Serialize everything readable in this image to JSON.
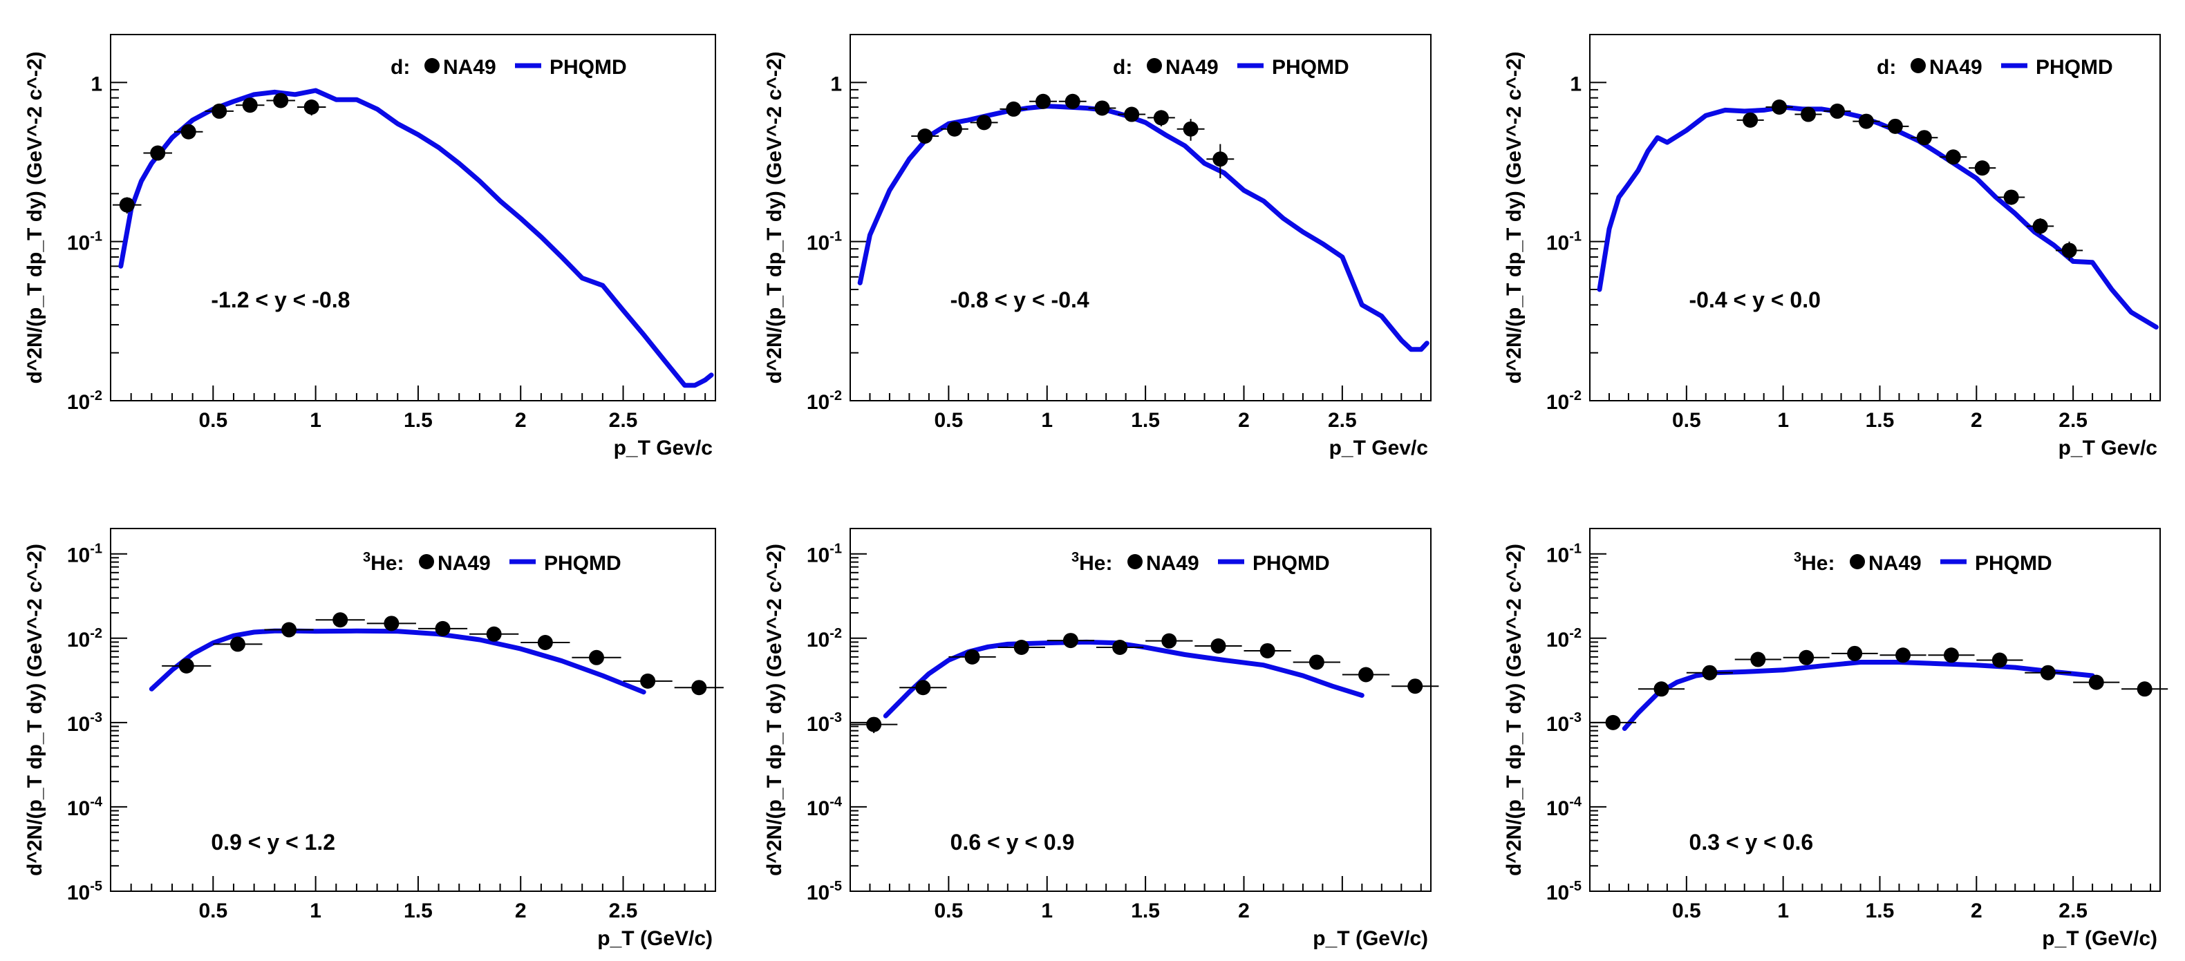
{
  "figure": {
    "colors": {
      "data": "#000000",
      "model": "#0a0ae6",
      "frame": "#000000"
    }
  },
  "chart_data": [
    {
      "type": "line",
      "log_y": true,
      "xlabel": "p_T Gev/c",
      "ylabel": "d^2N/(p_T dp_T dy) (GeV^-2 c^-2)",
      "xlim": [
        0,
        2.95
      ],
      "ylim": [
        0.01,
        2
      ],
      "xticks": [
        "0.5",
        "1",
        "1.5",
        "2",
        "2.5"
      ],
      "xtick_values": [
        0.5,
        1,
        1.5,
        2,
        2.5
      ],
      "yticks": [
        {
          "base": "10",
          "exp": "-2",
          "value": 0.01
        },
        {
          "base": "10",
          "exp": "-1",
          "value": 0.1
        },
        {
          "base": "1",
          "exp": "",
          "value": 1
        }
      ],
      "legend": {
        "prefix": "d:",
        "data_label": "NA49",
        "model_label": "PHQMD",
        "placement": "top-right"
      },
      "annotation": "-1.2 < y < -0.8",
      "series": [
        {
          "name": "NA49",
          "kind": "points",
          "x": [
            0.08,
            0.23,
            0.38,
            0.53,
            0.68,
            0.83,
            0.98
          ],
          "y": [
            0.17,
            0.36,
            0.49,
            0.66,
            0.72,
            0.77,
            0.7
          ],
          "xerr": [
            0.07,
            0.07,
            0.07,
            0.07,
            0.07,
            0.07,
            0.07
          ],
          "yerr": [
            0.02,
            0.03,
            0.04,
            0.05,
            0.05,
            0.06,
            0.08
          ]
        },
        {
          "name": "PHQMD",
          "kind": "line",
          "x": [
            0.05,
            0.1,
            0.15,
            0.2,
            0.3,
            0.4,
            0.5,
            0.6,
            0.7,
            0.8,
            0.9,
            1.0,
            1.1,
            1.2,
            1.3,
            1.4,
            1.5,
            1.6,
            1.7,
            1.8,
            1.9,
            2.0,
            2.1,
            2.2,
            2.3,
            2.4,
            2.5,
            2.6,
            2.7,
            2.8,
            2.85,
            2.9,
            2.93
          ],
          "y": [
            0.07,
            0.16,
            0.24,
            0.31,
            0.45,
            0.58,
            0.68,
            0.76,
            0.84,
            0.87,
            0.84,
            0.89,
            0.78,
            0.78,
            0.68,
            0.55,
            0.47,
            0.39,
            0.31,
            0.24,
            0.18,
            0.14,
            0.107,
            0.08,
            0.059,
            0.053,
            0.037,
            0.026,
            0.018,
            0.0125,
            0.0125,
            0.0135,
            0.0145
          ]
        }
      ]
    },
    {
      "type": "line",
      "log_y": true,
      "xlabel": "p_T Gev/c",
      "ylabel": "d^2N/(p_T dp_T dy) (GeV^-2 c^-2)",
      "xlim": [
        0,
        2.95
      ],
      "ylim": [
        0.01,
        2
      ],
      "xticks": [
        "0.5",
        "1",
        "1.5",
        "2",
        "2.5"
      ],
      "xtick_values": [
        0.5,
        1,
        1.5,
        2,
        2.5
      ],
      "yticks": [
        {
          "base": "10",
          "exp": "-2",
          "value": 0.01
        },
        {
          "base": "10",
          "exp": "-1",
          "value": 0.1
        },
        {
          "base": "1",
          "exp": "",
          "value": 1
        }
      ],
      "legend": {
        "prefix": "d:",
        "data_label": "NA49",
        "model_label": "PHQMD",
        "placement": "top-right"
      },
      "annotation": "-0.8 < y < -0.4",
      "series": [
        {
          "name": "NA49",
          "kind": "points",
          "x": [
            0.38,
            0.53,
            0.68,
            0.83,
            0.98,
            1.13,
            1.28,
            1.43,
            1.58,
            1.73,
            1.88
          ],
          "y": [
            0.46,
            0.51,
            0.56,
            0.68,
            0.76,
            0.76,
            0.69,
            0.63,
            0.6,
            0.51,
            0.33
          ],
          "xerr": [
            0.07,
            0.07,
            0.07,
            0.07,
            0.07,
            0.07,
            0.07,
            0.07,
            0.07,
            0.07,
            0.07
          ],
          "yerr": [
            0.04,
            0.04,
            0.05,
            0.05,
            0.06,
            0.06,
            0.06,
            0.06,
            0.07,
            0.08,
            0.08
          ]
        },
        {
          "name": "PHQMD",
          "kind": "line",
          "x": [
            0.05,
            0.1,
            0.2,
            0.3,
            0.4,
            0.5,
            0.6,
            0.7,
            0.8,
            0.9,
            1.0,
            1.1,
            1.2,
            1.3,
            1.4,
            1.5,
            1.6,
            1.7,
            1.8,
            1.9,
            2.0,
            2.1,
            2.2,
            2.3,
            2.4,
            2.5,
            2.6,
            2.7,
            2.8,
            2.85,
            2.9,
            2.93
          ],
          "y": [
            0.055,
            0.11,
            0.21,
            0.33,
            0.46,
            0.55,
            0.58,
            0.62,
            0.66,
            0.69,
            0.71,
            0.7,
            0.69,
            0.67,
            0.62,
            0.56,
            0.47,
            0.4,
            0.31,
            0.27,
            0.21,
            0.18,
            0.14,
            0.115,
            0.097,
            0.08,
            0.04,
            0.034,
            0.024,
            0.021,
            0.021,
            0.023
          ]
        }
      ]
    },
    {
      "type": "line",
      "log_y": true,
      "xlabel": "p_T Gev/c",
      "ylabel": "d^2N/(p_T dp_T dy) (GeV^-2 c^-2)",
      "xlim": [
        0,
        2.95
      ],
      "ylim": [
        0.01,
        2
      ],
      "xticks": [
        "0.5",
        "1",
        "1.5",
        "2",
        "2.5"
      ],
      "xtick_values": [
        0.5,
        1,
        1.5,
        2,
        2.5
      ],
      "yticks": [
        {
          "base": "10",
          "exp": "-2",
          "value": 0.01
        },
        {
          "base": "10",
          "exp": "-1",
          "value": 0.1
        },
        {
          "base": "1",
          "exp": "",
          "value": 1
        }
      ],
      "legend": {
        "prefix": "d:",
        "data_label": "NA49",
        "model_label": "PHQMD",
        "placement": "top-right"
      },
      "annotation": "-0.4 < y < 0.0",
      "series": [
        {
          "name": "NA49",
          "kind": "points",
          "x": [
            0.83,
            0.98,
            1.13,
            1.28,
            1.43,
            1.58,
            1.73,
            1.88,
            2.03,
            2.18,
            2.33,
            2.48
          ],
          "y": [
            0.58,
            0.7,
            0.63,
            0.66,
            0.57,
            0.53,
            0.45,
            0.34,
            0.29,
            0.19,
            0.125,
            0.088
          ],
          "xerr": [
            0.07,
            0.07,
            0.07,
            0.07,
            0.07,
            0.07,
            0.07,
            0.07,
            0.07,
            0.07,
            0.07,
            0.07
          ],
          "yerr": [
            0.04,
            0.05,
            0.05,
            0.05,
            0.04,
            0.04,
            0.04,
            0.03,
            0.03,
            0.02,
            0.015,
            0.012
          ]
        },
        {
          "name": "PHQMD",
          "kind": "line",
          "x": [
            0.05,
            0.1,
            0.15,
            0.2,
            0.25,
            0.3,
            0.35,
            0.4,
            0.5,
            0.6,
            0.7,
            0.8,
            0.9,
            1.0,
            1.1,
            1.2,
            1.3,
            1.4,
            1.5,
            1.6,
            1.7,
            1.8,
            1.9,
            2.0,
            2.1,
            2.2,
            2.3,
            2.4,
            2.5,
            2.6,
            2.7,
            2.8,
            2.93
          ],
          "y": [
            0.05,
            0.12,
            0.19,
            0.23,
            0.28,
            0.37,
            0.45,
            0.42,
            0.5,
            0.62,
            0.67,
            0.66,
            0.67,
            0.7,
            0.68,
            0.68,
            0.65,
            0.61,
            0.55,
            0.49,
            0.43,
            0.36,
            0.3,
            0.25,
            0.19,
            0.15,
            0.115,
            0.095,
            0.075,
            0.074,
            0.05,
            0.036,
            0.029
          ]
        }
      ]
    },
    {
      "type": "line",
      "log_y": true,
      "xlabel": "p_T (GeV/c)",
      "ylabel": "d^2N/(p_T dp_T dy) (GeV^-2 c^-2)",
      "xlim": [
        0,
        2.95
      ],
      "ylim": [
        1e-05,
        0.2
      ],
      "xticks": [
        "0.5",
        "1",
        "1.5",
        "2",
        "2.5"
      ],
      "xtick_values": [
        0.5,
        1,
        1.5,
        2,
        2.5
      ],
      "yticks": [
        {
          "base": "10",
          "exp": "-5",
          "value": 1e-05
        },
        {
          "base": "10",
          "exp": "-4",
          "value": 0.0001
        },
        {
          "base": "10",
          "exp": "-3",
          "value": 0.001
        },
        {
          "base": "10",
          "exp": "-2",
          "value": 0.01
        },
        {
          "base": "10",
          "exp": "-1",
          "value": 0.1
        }
      ],
      "legend": {
        "prefix_sup": "3",
        "prefix": "He:",
        "data_label": "NA49",
        "model_label": "PHQMD",
        "placement": "top-right"
      },
      "annotation": "0.9 < y < 1.2",
      "series": [
        {
          "name": "NA49",
          "kind": "points",
          "x": [
            0.37,
            0.62,
            0.87,
            1.12,
            1.37,
            1.62,
            1.87,
            2.12,
            2.37,
            2.62,
            2.87
          ],
          "y": [
            0.0047,
            0.0085,
            0.0126,
            0.0165,
            0.015,
            0.013,
            0.0112,
            0.0089,
            0.0059,
            0.0031,
            0.0026
          ],
          "xerr": [
            0.12,
            0.12,
            0.12,
            0.12,
            0.12,
            0.12,
            0.12,
            0.12,
            0.12,
            0.12,
            0.12
          ],
          "yerr": [
            0.0004,
            0.0007,
            0.001,
            0.0012,
            0.0011,
            0.001,
            0.0009,
            0.0007,
            0.0005,
            0.0003,
            0.0002
          ]
        },
        {
          "name": "PHQMD",
          "kind": "line",
          "x": [
            0.2,
            0.3,
            0.4,
            0.5,
            0.6,
            0.7,
            0.8,
            0.9,
            1.0,
            1.2,
            1.4,
            1.6,
            1.8,
            2.0,
            2.2,
            2.4,
            2.6
          ],
          "y": [
            0.0025,
            0.0042,
            0.0065,
            0.0088,
            0.0107,
            0.0118,
            0.0122,
            0.0122,
            0.0121,
            0.0122,
            0.0121,
            0.0112,
            0.0096,
            0.0075,
            0.0054,
            0.0036,
            0.0023
          ]
        }
      ]
    },
    {
      "type": "line",
      "log_y": true,
      "xlabel": "p_T (GeV/c)",
      "ylabel": "d^2N/(p_T dp_T dy) (GeV^-2 c^-2)",
      "xlim": [
        0,
        2.95
      ],
      "ylim": [
        1e-05,
        0.2
      ],
      "xticks": [
        "0.5",
        "1",
        "1.5",
        "2"
      ],
      "xtick_values": [
        0.5,
        1,
        1.5,
        2
      ],
      "yticks": [
        {
          "base": "10",
          "exp": "-5",
          "value": 1e-05
        },
        {
          "base": "10",
          "exp": "-4",
          "value": 0.0001
        },
        {
          "base": "10",
          "exp": "-3",
          "value": 0.001
        },
        {
          "base": "10",
          "exp": "-2",
          "value": 0.01
        },
        {
          "base": "10",
          "exp": "-1",
          "value": 0.1
        }
      ],
      "legend": {
        "prefix_sup": "3",
        "prefix": "He:",
        "data_label": "NA49",
        "model_label": "PHQMD",
        "placement": "top-right"
      },
      "annotation": "0.6 < y < 0.9",
      "series": [
        {
          "name": "NA49",
          "kind": "points",
          "x": [
            0.12,
            0.37,
            0.62,
            0.87,
            1.12,
            1.37,
            1.62,
            1.87,
            2.12,
            2.37,
            2.62,
            2.87
          ],
          "y": [
            0.00095,
            0.0026,
            0.006,
            0.0078,
            0.0094,
            0.0078,
            0.0093,
            0.0081,
            0.0071,
            0.0052,
            0.0037,
            0.0027
          ],
          "xerr": [
            0.12,
            0.12,
            0.12,
            0.12,
            0.12,
            0.12,
            0.12,
            0.12,
            0.12,
            0.12,
            0.12,
            0.12
          ],
          "yerr": [
            0.0002,
            0.0003,
            0.0005,
            0.0006,
            0.0007,
            0.0006,
            0.0007,
            0.0006,
            0.0005,
            0.0004,
            0.0003,
            0.0002
          ]
        },
        {
          "name": "PHQMD",
          "kind": "line",
          "x": [
            0.18,
            0.3,
            0.4,
            0.5,
            0.6,
            0.7,
            0.8,
            1.0,
            1.2,
            1.35,
            1.5,
            1.7,
            1.9,
            2.1,
            2.3,
            2.45,
            2.6
          ],
          "y": [
            0.0012,
            0.0023,
            0.0038,
            0.0055,
            0.0069,
            0.0079,
            0.0085,
            0.0088,
            0.009,
            0.0088,
            0.0078,
            0.0064,
            0.0055,
            0.0048,
            0.0036,
            0.0027,
            0.0021
          ]
        }
      ]
    },
    {
      "type": "line",
      "log_y": true,
      "xlabel": "p_T (GeV/c)",
      "ylabel": "d^2N/(p_T dp_T dy) (GeV^-2 c^-2)",
      "xlim": [
        0,
        2.95
      ],
      "ylim": [
        1e-05,
        0.2
      ],
      "xticks": [
        "0.5",
        "1",
        "1.5",
        "2",
        "2.5"
      ],
      "xtick_values": [
        0.5,
        1,
        1.5,
        2,
        2.5
      ],
      "yticks": [
        {
          "base": "10",
          "exp": "-5",
          "value": 1e-05
        },
        {
          "base": "10",
          "exp": "-4",
          "value": 0.0001
        },
        {
          "base": "10",
          "exp": "-3",
          "value": 0.001
        },
        {
          "base": "10",
          "exp": "-2",
          "value": 0.01
        },
        {
          "base": "10",
          "exp": "-1",
          "value": 0.1
        }
      ],
      "legend": {
        "prefix_sup": "3",
        "prefix": "He:",
        "data_label": "NA49",
        "model_label": "PHQMD",
        "placement": "top-right"
      },
      "annotation": "0.3 < y < 0.6",
      "series": [
        {
          "name": "NA49",
          "kind": "points",
          "x": [
            0.12,
            0.37,
            0.62,
            0.87,
            1.12,
            1.37,
            1.62,
            1.87,
            2.12,
            2.37,
            2.62,
            2.87
          ],
          "y": [
            0.001,
            0.0025,
            0.0039,
            0.0056,
            0.0059,
            0.0066,
            0.0063,
            0.0063,
            0.0055,
            0.0039,
            0.003,
            0.0025
          ],
          "xerr": [
            0.12,
            0.12,
            0.12,
            0.12,
            0.12,
            0.12,
            0.12,
            0.12,
            0.12,
            0.12,
            0.12,
            0.12
          ],
          "yerr": [
            0.0001,
            0.0002,
            0.0003,
            0.0004,
            0.0004,
            0.0005,
            0.0004,
            0.0004,
            0.0004,
            0.0003,
            0.0002,
            0.0002
          ]
        },
        {
          "name": "PHQMD",
          "kind": "line",
          "x": [
            0.18,
            0.25,
            0.35,
            0.45,
            0.55,
            0.65,
            0.8,
            1.0,
            1.2,
            1.4,
            1.6,
            1.8,
            2.0,
            2.2,
            2.4,
            2.6
          ],
          "y": [
            0.00085,
            0.0013,
            0.0022,
            0.003,
            0.0036,
            0.0039,
            0.004,
            0.0042,
            0.0047,
            0.0052,
            0.0052,
            0.005,
            0.0048,
            0.0045,
            0.004,
            0.0036
          ]
        }
      ]
    }
  ]
}
